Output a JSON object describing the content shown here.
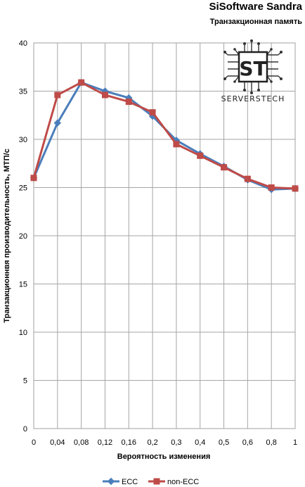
{
  "chart_data": {
    "type": "line",
    "title": "SiSoftware Sandra",
    "subtitle": "Транзакционная память",
    "xlabel": "Вероятность изменения",
    "ylabel": "Транзакционнвя производительность, MTП/с",
    "x": [
      "0",
      "0,04",
      "0,08",
      "0,12",
      "0,16",
      "0,2",
      "0,3",
      "0,4",
      "0,5",
      "0,6",
      "0,8",
      "1"
    ],
    "yticks": [
      "0",
      "5",
      "10",
      "15",
      "20",
      "25",
      "30",
      "35",
      "40"
    ],
    "ylim": [
      0,
      40
    ],
    "grid": true,
    "legend_position": "bottom",
    "series": [
      {
        "name": "ECC",
        "color": "#4a7ebb",
        "marker": "diamond",
        "values": [
          26.0,
          31.7,
          35.9,
          35.0,
          34.3,
          32.4,
          29.9,
          28.5,
          27.2,
          25.8,
          24.8,
          24.9
        ]
      },
      {
        "name": "non-ECC",
        "color": "#be4b48",
        "marker": "square",
        "values": [
          26.0,
          34.6,
          35.9,
          34.6,
          33.9,
          32.8,
          29.5,
          28.3,
          27.1,
          25.9,
          25.0,
          24.9
        ]
      }
    ],
    "watermark": "SERVERSTECH",
    "watermark_logo": "ST"
  }
}
